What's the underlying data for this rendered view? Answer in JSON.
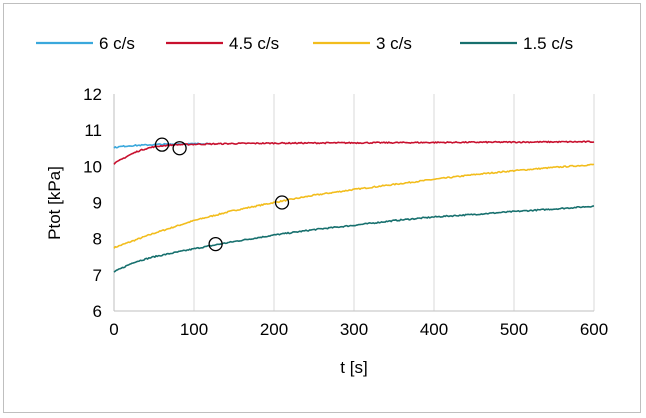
{
  "chart_data": {
    "type": "line",
    "xlabel": "t [s]",
    "ylabel": "Ptot [kPa]",
    "xlim": [
      0,
      600
    ],
    "ylim": [
      6,
      12
    ],
    "xticks": [
      0,
      100,
      200,
      300,
      400,
      500,
      600
    ],
    "yticks": [
      6,
      7,
      8,
      9,
      10,
      11,
      12
    ],
    "grid": "vertical",
    "legend_position": "top",
    "series": [
      {
        "name": "6 c/s",
        "color": "#3aa8dc",
        "x": [
          0,
          10,
          20,
          30,
          40,
          50,
          60,
          70,
          80,
          90,
          100,
          110,
          120
        ],
        "y": [
          10.52,
          10.55,
          10.57,
          10.58,
          10.59,
          10.6,
          10.61,
          10.61,
          10.62,
          10.62,
          10.62,
          10.63,
          10.63
        ]
      },
      {
        "name": "4.5 c/s",
        "color": "#c8102e",
        "x": [
          0,
          10,
          20,
          30,
          40,
          50,
          60,
          80,
          100,
          150,
          200,
          300,
          400,
          500,
          600
        ],
        "y": [
          10.07,
          10.2,
          10.32,
          10.42,
          10.49,
          10.54,
          10.57,
          10.6,
          10.61,
          10.63,
          10.64,
          10.65,
          10.66,
          10.67,
          10.68
        ]
      },
      {
        "name": "3 c/s",
        "color": "#f2bd1d",
        "x": [
          0,
          50,
          100,
          150,
          200,
          250,
          300,
          350,
          400,
          450,
          500,
          550,
          600
        ],
        "y": [
          7.75,
          8.15,
          8.5,
          8.78,
          9.0,
          9.2,
          9.36,
          9.5,
          9.64,
          9.77,
          9.88,
          9.97,
          10.05
        ]
      },
      {
        "name": "1.5 c/s",
        "color": "#17706e",
        "x": [
          0,
          25,
          50,
          100,
          150,
          200,
          250,
          300,
          350,
          400,
          450,
          500,
          550,
          600
        ],
        "y": [
          7.08,
          7.35,
          7.5,
          7.72,
          7.92,
          8.1,
          8.25,
          8.37,
          8.5,
          8.6,
          8.67,
          8.75,
          8.82,
          8.9
        ]
      }
    ],
    "markers": [
      {
        "x": 60,
        "y": 10.6
      },
      {
        "x": 82,
        "y": 10.5
      },
      {
        "x": 210,
        "y": 9.0
      },
      {
        "x": 127,
        "y": 7.85
      }
    ]
  }
}
